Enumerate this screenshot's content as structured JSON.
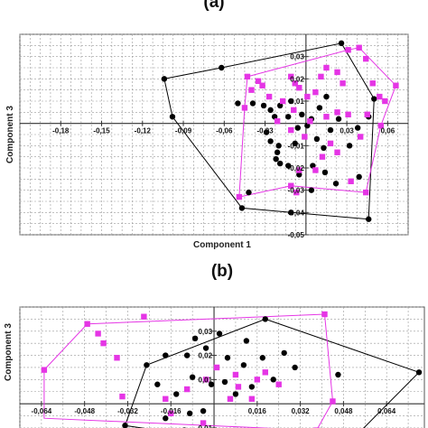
{
  "chart_data": [
    {
      "type": "scatter",
      "panel_label": "(a)",
      "xlabel": "Component 1",
      "ylabel": "Component 3",
      "xlim": [
        -0.21,
        0.075
      ],
      "ylim": [
        -0.05,
        0.04
      ],
      "xticks": [
        -0.18,
        -0.15,
        -0.12,
        -0.09,
        -0.06,
        -0.03,
        0.03,
        0.06
      ],
      "xtick_labels": [
        "-0,18",
        "-0,15",
        "-0,12",
        "-0,09",
        "-0,06",
        "-0,03",
        "0,03",
        "0,06"
      ],
      "yticks": [
        0.03,
        0.02,
        0.01,
        -0.01,
        -0.02,
        -0.03,
        -0.04,
        -0.05
      ],
      "ytick_labels": [
        "0,03",
        "0,02",
        "0,01",
        "-0,01",
        "-0,02",
        "-0,03",
        "-0,04",
        "-0,05"
      ],
      "grid": true,
      "series": [
        {
          "marker": "circle",
          "color": "#000000",
          "points": [
            [
              -0.104,
              0.02
            ],
            [
              -0.062,
              0.025
            ],
            [
              -0.098,
              0.003
            ],
            [
              0.026,
              0.036
            ],
            [
              -0.05,
              0.009
            ],
            [
              -0.039,
              0.009
            ],
            [
              -0.031,
              0.008
            ],
            [
              -0.026,
              0.006
            ],
            [
              -0.023,
              0.003
            ],
            [
              -0.019,
              0.008
            ],
            [
              -0.011,
              0.01
            ],
            [
              -0.013,
              0.003
            ],
            [
              -0.029,
              -0.004
            ],
            [
              -0.026,
              -0.008
            ],
            [
              -0.02,
              -0.01
            ],
            [
              -0.021,
              -0.013
            ],
            [
              -0.022,
              -0.016
            ],
            [
              -0.019,
              -0.018
            ],
            [
              -0.006,
              -0.002
            ],
            [
              -0.003,
              0.004
            ],
            [
              -0.008,
              -0.009
            ],
            [
              0.001,
              -0.001
            ],
            [
              0.004,
              0.002
            ],
            [
              0.01,
              0.007
            ],
            [
              0.015,
              0.012
            ],
            [
              0.018,
              -0.003
            ],
            [
              0.024,
              0.002
            ],
            [
              0.008,
              -0.007
            ],
            [
              0.013,
              -0.011
            ],
            [
              0.032,
              -0.01
            ],
            [
              0.038,
              -0.002
            ],
            [
              0.046,
              0.003
            ],
            [
              0.05,
              0.011
            ],
            [
              0.005,
              -0.019
            ],
            [
              0.014,
              -0.022
            ],
            [
              0.022,
              -0.027
            ],
            [
              -0.005,
              -0.023
            ],
            [
              -0.013,
              -0.019
            ],
            [
              -0.042,
              -0.031
            ],
            [
              -0.047,
              -0.038
            ],
            [
              -0.011,
              -0.04
            ],
            [
              0.004,
              -0.03
            ],
            [
              0.046,
              -0.043
            ],
            [
              0.039,
              -0.024
            ]
          ]
        },
        {
          "marker": "square",
          "color": "#e535e5",
          "points": [
            [
              -0.043,
              0.021
            ],
            [
              -0.035,
              0.019
            ],
            [
              -0.045,
              0.007
            ],
            [
              -0.04,
              0.015
            ],
            [
              -0.032,
              0.017
            ],
            [
              -0.027,
              0.012
            ],
            [
              -0.021,
              0.001
            ],
            [
              -0.017,
              0.01
            ],
            [
              -0.011,
              0.021
            ],
            [
              -0.008,
              0.018
            ],
            [
              -0.009,
              0.006
            ],
            [
              -0.005,
              0.016
            ],
            [
              0.001,
              0.012
            ],
            [
              -0.011,
              -0.003
            ],
            [
              -0.001,
              -0.006
            ],
            [
              0.003,
              0.001
            ],
            [
              0.007,
              0.014
            ],
            [
              0.011,
              0.021
            ],
            [
              0.015,
              0.025
            ],
            [
              0.023,
              0.023
            ],
            [
              0.027,
              0.018
            ],
            [
              0.031,
              0.033
            ],
            [
              0.039,
              0.034
            ],
            [
              0.044,
              0.029
            ],
            [
              0.049,
              0.018
            ],
            [
              0.054,
              0.012
            ],
            [
              0.058,
              0.01
            ],
            [
              0.066,
              0.017
            ],
            [
              0.045,
              0.004
            ],
            [
              0.055,
              -0.001
            ],
            [
              0.04,
              -0.006
            ],
            [
              0.031,
              0.004
            ],
            [
              0.023,
              0.005
            ],
            [
              0.015,
              0.003
            ],
            [
              0.018,
              -0.009
            ],
            [
              0.023,
              -0.013
            ],
            [
              0.012,
              -0.015
            ],
            [
              0.007,
              -0.021
            ],
            [
              -0.005,
              -0.021
            ],
            [
              -0.011,
              -0.028
            ],
            [
              -0.049,
              -0.033
            ],
            [
              -0.007,
              -0.031
            ],
            [
              0.033,
              -0.026
            ],
            [
              0.044,
              -0.031
            ]
          ]
        }
      ],
      "hulls": [
        {
          "color": "#000000",
          "points": [
            [
              -0.104,
              0.02
            ],
            [
              -0.062,
              0.025
            ],
            [
              0.026,
              0.036
            ],
            [
              0.05,
              0.011
            ],
            [
              0.046,
              -0.043
            ],
            [
              -0.011,
              -0.04
            ],
            [
              -0.047,
              -0.038
            ],
            [
              -0.098,
              0.003
            ]
          ]
        },
        {
          "color": "#e535e5",
          "points": [
            [
              -0.043,
              0.021
            ],
            [
              0.031,
              0.033
            ],
            [
              0.039,
              0.034
            ],
            [
              0.066,
              0.017
            ],
            [
              0.055,
              -0.001
            ],
            [
              0.044,
              -0.031
            ],
            [
              -0.011,
              -0.028
            ],
            [
              -0.049,
              -0.033
            ],
            [
              -0.045,
              0.007
            ]
          ]
        }
      ]
    },
    {
      "type": "scatter",
      "panel_label": "(b)",
      "ylabel": "Component 3",
      "xlim": [
        -0.072,
        0.078
      ],
      "ylim": [
        -0.016,
        0.04
      ],
      "xticks": [
        -0.064,
        -0.048,
        -0.032,
        -0.016,
        0.016,
        0.032,
        0.048,
        0.064
      ],
      "xtick_labels": [
        "-0,064",
        "-0,048",
        "-0,032",
        "-0,016",
        "0,016",
        "0,032",
        "0,048",
        "0,064"
      ],
      "yticks": [
        0.03,
        0.02,
        0.01,
        -0.01
      ],
      "ytick_labels": [
        "0,03",
        "0,02",
        "0,01",
        "-0,01"
      ],
      "grid": true,
      "series": [
        {
          "marker": "circle",
          "color": "#000000",
          "points": [
            [
              0.019,
              0.035
            ],
            [
              0.002,
              0.029
            ],
            [
              -0.007,
              0.027
            ],
            [
              -0.018,
              0.02
            ],
            [
              -0.025,
              0.016
            ],
            [
              -0.01,
              0.02
            ],
            [
              -0.003,
              0.023
            ],
            [
              0.005,
              0.019
            ],
            [
              0.011,
              0.016
            ],
            [
              0.012,
              0.026
            ],
            [
              0.018,
              0.019
            ],
            [
              0.026,
              0.021
            ],
            [
              0.03,
              0.015
            ],
            [
              -0.021,
              0.008
            ],
            [
              -0.014,
              0.004
            ],
            [
              -0.008,
              0.011
            ],
            [
              -0.001,
              0.008
            ],
            [
              0.004,
              0.009
            ],
            [
              0.008,
              0.004
            ],
            [
              0.014,
              0.007
            ],
            [
              0.022,
              0.01
            ],
            [
              0.046,
              0.012
            ],
            [
              0.076,
              0.013
            ],
            [
              -0.033,
              -0.009
            ],
            [
              -0.018,
              -0.006
            ],
            [
              -0.009,
              -0.004
            ],
            [
              -0.004,
              -0.003
            ],
            [
              -0.011,
              -0.011
            ],
            [
              0.003,
              -0.013
            ],
            [
              -0.002,
              -0.014
            ],
            [
              0.045,
              -0.012
            ],
            [
              0.052,
              -0.014
            ]
          ]
        },
        {
          "marker": "square",
          "color": "#e535e5",
          "points": [
            [
              -0.063,
              0.014
            ],
            [
              -0.047,
              0.033
            ],
            [
              -0.041,
              0.025
            ],
            [
              -0.043,
              0.029
            ],
            [
              -0.036,
              0.019
            ],
            [
              -0.026,
              0.036
            ],
            [
              -0.034,
              0.003
            ],
            [
              -0.018,
              0.002
            ],
            [
              -0.01,
              0.006
            ],
            [
              -0.003,
              0.01
            ],
            [
              0.001,
              0.015
            ],
            [
              0.008,
              0.012
            ],
            [
              0.009,
              0.007
            ],
            [
              0.016,
              0.01
            ],
            [
              0.019,
              0.013
            ],
            [
              0.006,
              0.002
            ],
            [
              0.014,
              0.002
            ],
            [
              0.024,
              0.008
            ],
            [
              0.041,
              0.037
            ],
            [
              0.044,
              0.001
            ],
            [
              0.038,
              -0.011
            ],
            [
              -0.004,
              -0.008
            ],
            [
              -0.016,
              -0.004
            ]
          ]
        }
      ],
      "hulls": [
        {
          "color": "#000000",
          "points": [
            [
              0.019,
              0.035
            ],
            [
              0.076,
              0.013
            ],
            [
              0.052,
              -0.014
            ],
            [
              -0.002,
              -0.014
            ],
            [
              -0.033,
              -0.009
            ],
            [
              -0.025,
              0.016
            ]
          ]
        },
        {
          "color": "#e535e5",
          "points": [
            [
              -0.047,
              0.033
            ],
            [
              0.041,
              0.037
            ],
            [
              0.044,
              0.001
            ],
            [
              0.038,
              -0.011
            ],
            [
              -0.063,
              -0.006
            ],
            [
              -0.063,
              0.014
            ]
          ]
        }
      ]
    }
  ]
}
